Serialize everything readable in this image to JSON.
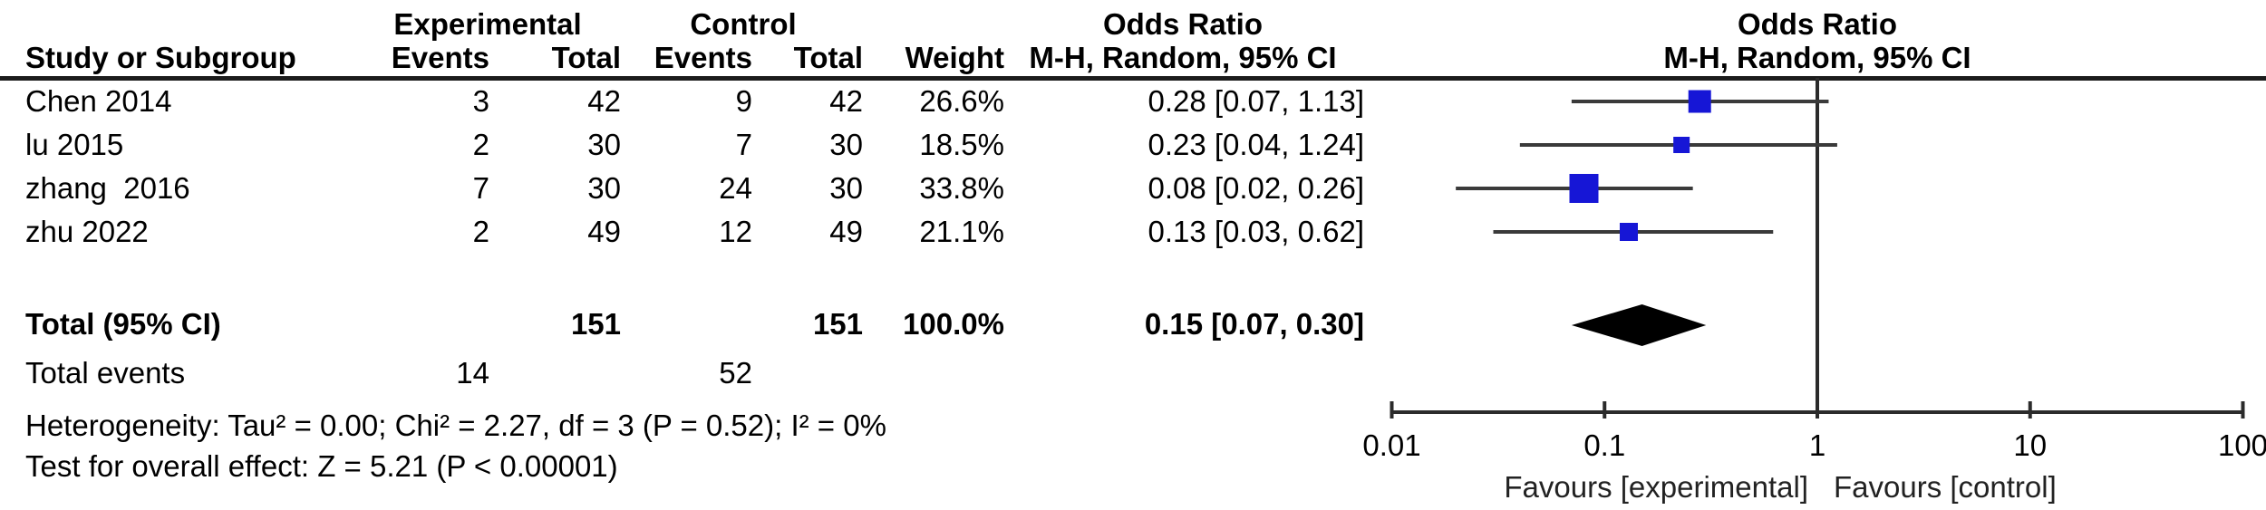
{
  "header": {
    "group_experimental": "Experimental",
    "group_control": "Control",
    "study_col": "Study or Subgroup",
    "events_col": "Events",
    "total_col": "Total",
    "weight_col": "Weight",
    "or_title": "Odds Ratio",
    "or_subtitle": "M-H, Random, 95% CI",
    "plot_title": "Odds Ratio",
    "plot_subtitle": "M-H, Random, 95% CI"
  },
  "table": {
    "rows": [
      {
        "study": "Chen 2014",
        "exp_events": "3",
        "exp_total": "42",
        "ctrl_events": "9",
        "ctrl_total": "42",
        "weight": "26.6%",
        "or_ci": "0.28 [0.07, 1.13]"
      },
      {
        "study": "lu 2015",
        "exp_events": "2",
        "exp_total": "30",
        "ctrl_events": "7",
        "ctrl_total": "30",
        "weight": "18.5%",
        "or_ci": "0.23 [0.04, 1.24]"
      },
      {
        "study": "zhang  2016",
        "exp_events": "7",
        "exp_total": "30",
        "ctrl_events": "24",
        "ctrl_total": "30",
        "weight": "33.8%",
        "or_ci": "0.08 [0.02, 0.26]"
      },
      {
        "study": "zhu 2022",
        "exp_events": "2",
        "exp_total": "49",
        "ctrl_events": "12",
        "ctrl_total": "49",
        "weight": "21.1%",
        "or_ci": "0.13 [0.03, 0.62]"
      }
    ],
    "total": {
      "label": "Total (95% CI)",
      "exp_total": "151",
      "ctrl_total": "151",
      "weight": "100.0%",
      "or_ci": "0.15 [0.07, 0.30]"
    },
    "total_events": {
      "label": "Total events",
      "exp": "14",
      "ctrl": "52"
    },
    "heterogeneity": "Heterogeneity: Tau² = 0.00; Chi² = 2.27, df = 3 (P = 0.52); I² = 0%",
    "overall_effect": "Test for overall effect: Z = 5.21 (P < 0.00001)"
  },
  "chart_data": {
    "type": "forest",
    "effect_measure": "Odds Ratio",
    "model": "M-H, Random, 95% CI",
    "x_scale": "log10",
    "x_ticks": [
      "0.01",
      "0.1",
      "1",
      "10",
      "100"
    ],
    "x_tick_values": [
      0.01,
      0.1,
      1,
      10,
      100
    ],
    "x_range": [
      0.01,
      100
    ],
    "null_value": 1,
    "xlabel_left": "Favours [experimental]",
    "xlabel_right": "Favours [control]",
    "studies": [
      {
        "name": "Chen 2014",
        "or": 0.28,
        "ci_low": 0.07,
        "ci_high": 1.13,
        "weight_pct": 26.6
      },
      {
        "name": "lu 2015",
        "or": 0.23,
        "ci_low": 0.04,
        "ci_high": 1.24,
        "weight_pct": 18.5
      },
      {
        "name": "zhang  2016",
        "or": 0.08,
        "ci_low": 0.02,
        "ci_high": 0.26,
        "weight_pct": 33.8
      },
      {
        "name": "zhu 2022",
        "or": 0.13,
        "ci_low": 0.03,
        "ci_high": 0.62,
        "weight_pct": 21.1
      }
    ],
    "total": {
      "or": 0.15,
      "ci_low": 0.07,
      "ci_high": 0.3,
      "weight_pct": 100.0
    },
    "marker_color": "#1616d6",
    "ci_line_color": "#3a3a3a",
    "axis_color": "#2b2b2b",
    "diamond_color": "#000000"
  }
}
